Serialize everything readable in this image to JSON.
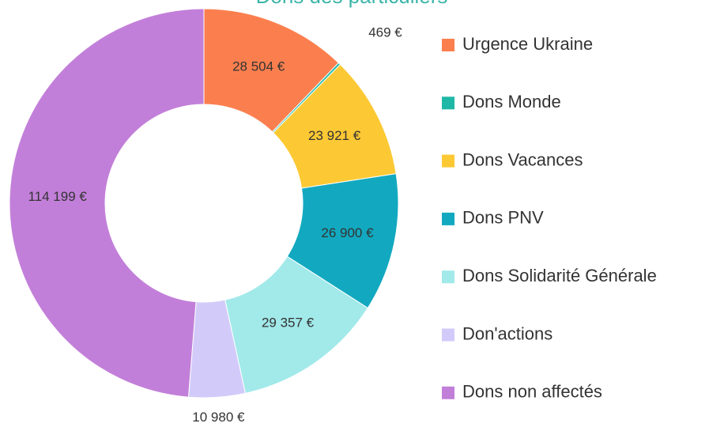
{
  "chart_data": {
    "type": "donut",
    "title": "Dons des particuliers",
    "categories": [
      "Urgence Ukraine",
      "Dons Monde",
      "Dons Vacances",
      "Dons PNV",
      "Dons Solidarité Générale",
      "Don'actions",
      "Dons non affectés"
    ],
    "values": [
      28504,
      469,
      23921,
      26900,
      29357,
      10980,
      114199
    ],
    "value_labels": [
      "28 504 €",
      "469 €",
      "23 921 €",
      "26 900 €",
      "29 357 €",
      "10 980 €",
      "114 199 €"
    ],
    "colors": [
      "#fb7f4e",
      "#1fb8a6",
      "#fcc934",
      "#12a9c0",
      "#a2e9ea",
      "#d2cbfa",
      "#c27fd9"
    ],
    "legend": "right"
  }
}
